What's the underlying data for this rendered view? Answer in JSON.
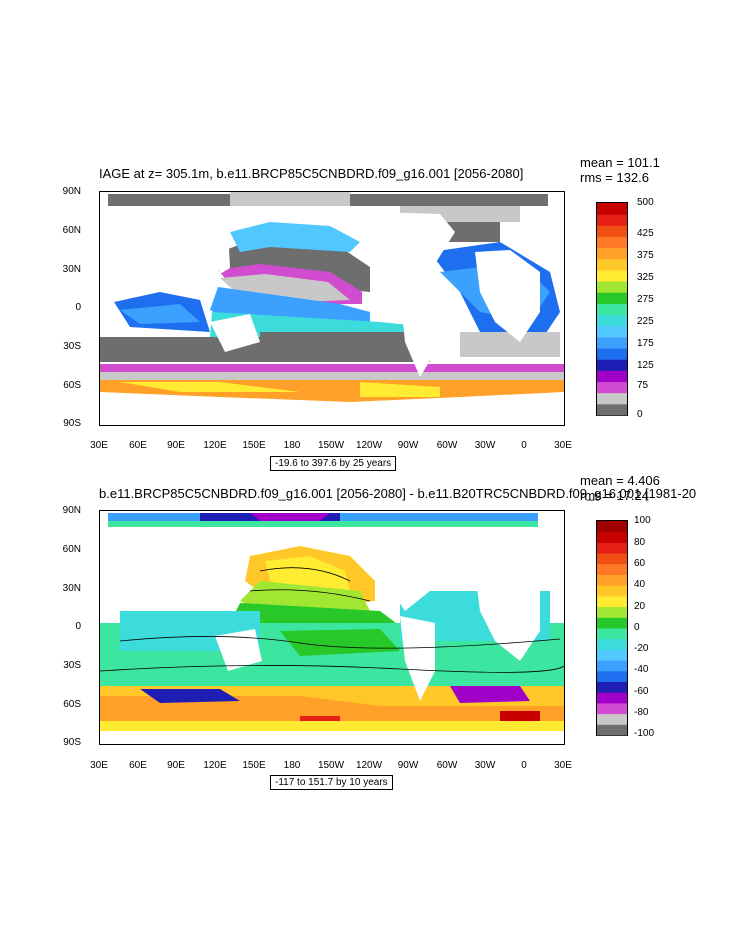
{
  "panel1": {
    "title": "IAGE at z= 305.1m, b.e11.BRCP85C5CNBDRD.f09_g16.001 [2056-2080]",
    "mean": "mean = 101.1",
    "rms": "rms = 132.6",
    "info": "-19.6 to 397.6 by 25 years",
    "lat_ticks": [
      "90N",
      "60N",
      "30N",
      "0",
      "30S",
      "60S",
      "90S"
    ],
    "lon_ticks": [
      "30E",
      "60E",
      "90E",
      "120E",
      "150E",
      "180",
      "150W",
      "120W",
      "90W",
      "60W",
      "30W",
      "0",
      "30E"
    ],
    "colorbar_labels": [
      "500",
      "425",
      "375",
      "325",
      "275",
      "225",
      "175",
      "125",
      "75",
      "0"
    ],
    "colorbar_colors": [
      "#6e6e6e",
      "#c8c8c8",
      "#d24cd2",
      "#a000c8",
      "#1e1eb4",
      "#1e6ef0",
      "#3ca0ff",
      "#50c8ff",
      "#3cdcdc",
      "#3ce6a0",
      "#28c828",
      "#a0e632",
      "#ffeb32",
      "#ffc828",
      "#ffa028",
      "#ff7828",
      "#f05014",
      "#e61e14",
      "#c80000"
    ]
  },
  "panel2": {
    "title": "b.e11.BRCP85C5CNBDRD.f09_g16.001 [2056-2080] - b.e11.B20TRC5CNBDRD.f09_g16.001 [1981-20",
    "mean": "mean = 4.406",
    "rms": "rms = 17.24",
    "info": "-117 to 151.7 by 10 years",
    "lat_ticks": [
      "90N",
      "60N",
      "30N",
      "0",
      "30S",
      "60S",
      "90S"
    ],
    "lon_ticks": [
      "30E",
      "60E",
      "90E",
      "120E",
      "150E",
      "180",
      "150W",
      "120W",
      "90W",
      "60W",
      "30W",
      "0",
      "30E"
    ],
    "colorbar_labels": [
      "100",
      "80",
      "60",
      "40",
      "20",
      "0",
      "-20",
      "-40",
      "-60",
      "-80",
      "-100"
    ],
    "colorbar_colors": [
      "#6e6e6e",
      "#c8c8c8",
      "#d24cd2",
      "#a000c8",
      "#1e1eb4",
      "#1e6ef0",
      "#3ca0ff",
      "#50c8ff",
      "#3cdcdc",
      "#3ce6a0",
      "#28c828",
      "#a0e632",
      "#ffeb32",
      "#ffc828",
      "#ffa028",
      "#ff7828",
      "#f05014",
      "#e61e14",
      "#c80000",
      "#a00000"
    ]
  }
}
